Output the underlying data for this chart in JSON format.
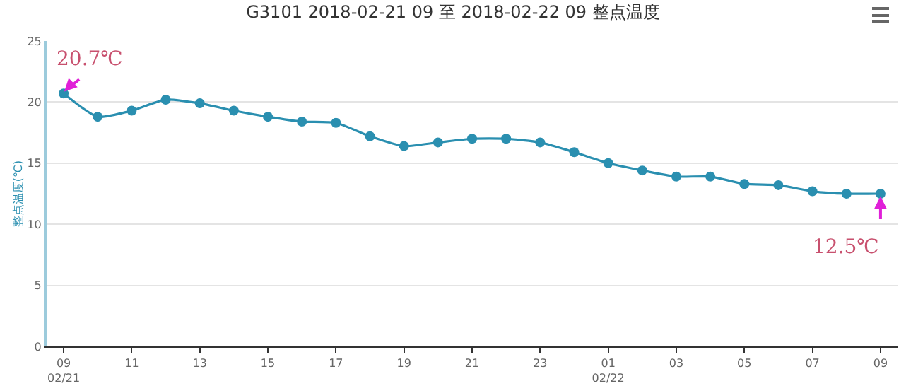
{
  "chart_data": {
    "type": "line",
    "title": "G3101 2018-02-21 09 至 2018-02-22 09 整点温度",
    "ylabel": "整点温度(℃)",
    "x": [
      "2018-02-21T09:00",
      "2018-02-21T10:00",
      "2018-02-21T11:00",
      "2018-02-21T12:00",
      "2018-02-21T13:00",
      "2018-02-21T14:00",
      "2018-02-21T15:00",
      "2018-02-21T16:00",
      "2018-02-21T17:00",
      "2018-02-21T18:00",
      "2018-02-21T19:00",
      "2018-02-21T20:00",
      "2018-02-21T21:00",
      "2018-02-21T22:00",
      "2018-02-21T23:00",
      "2018-02-22T00:00",
      "2018-02-22T01:00",
      "2018-02-22T02:00",
      "2018-02-22T03:00",
      "2018-02-22T04:00",
      "2018-02-22T05:00",
      "2018-02-22T06:00",
      "2018-02-22T07:00",
      "2018-02-22T08:00",
      "2018-02-22T09:00"
    ],
    "series": [
      {
        "color": "#2a8fb0",
        "values": [
          20.7,
          18.8,
          19.3,
          20.2,
          19.9,
          19.3,
          18.8,
          18.4,
          18.3,
          17.2,
          16.4,
          16.7,
          17.0,
          17.0,
          16.7,
          15.9,
          15.0,
          14.4,
          13.9,
          13.9,
          13.3,
          13.2,
          12.7,
          12.5,
          12.5
        ]
      }
    ],
    "xlim": [
      "2018-02-21T08:30",
      "2018-02-22T09:30"
    ],
    "xticks": [
      {
        "value": "2018-02-21T09:00",
        "label": "09\n02/21"
      },
      {
        "value": "2018-02-21T11:00",
        "label": "11"
      },
      {
        "value": "2018-02-21T13:00",
        "label": "13"
      },
      {
        "value": "2018-02-21T15:00",
        "label": "15"
      },
      {
        "value": "2018-02-21T17:00",
        "label": "17"
      },
      {
        "value": "2018-02-21T19:00",
        "label": "19"
      },
      {
        "value": "2018-02-21T21:00",
        "label": "21"
      },
      {
        "value": "2018-02-21T23:00",
        "label": "23"
      },
      {
        "value": "2018-02-22T01:00",
        "label": "01\n02/22"
      },
      {
        "value": "2018-02-22T03:00",
        "label": "03"
      },
      {
        "value": "2018-02-22T05:00",
        "label": "05"
      },
      {
        "value": "2018-02-22T07:00",
        "label": "07"
      },
      {
        "value": "2018-02-22T09:00",
        "label": "09"
      }
    ],
    "ylim": [
      0,
      25
    ],
    "yticks": [
      0,
      5,
      10,
      15,
      20,
      25
    ],
    "grid": "y",
    "marker": "circle",
    "line_style": "solid",
    "annotations": [
      {
        "text": "20.7℃",
        "x": "2018-02-21T09:00",
        "y": 20.7
      },
      {
        "text": "12.5℃",
        "x": "2018-02-22T09:00",
        "y": 12.5
      }
    ]
  }
}
